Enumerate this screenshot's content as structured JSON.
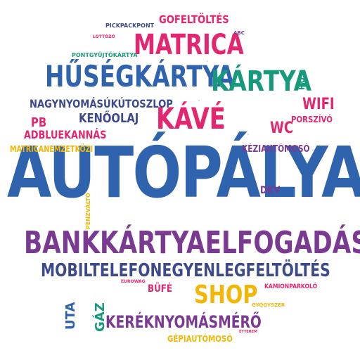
{
  "words": {
    "autopalya": "AUTÓPÁLYA",
    "bankkartya": "BANKKÁRTYAELFOGADÁS",
    "husegkartya": "HŰSÉGKÁRTYA",
    "matrica": "MATRICA",
    "kartya": "KÁRTYA",
    "kave": "KÁVÉ",
    "mobiltelefon": "MOBILTELEFONEGYENLEGFELTÖLTÉS",
    "shop": "SHOP",
    "kereknyomasmero": "KERÉKNYOMÁSMÉRŐ",
    "nagynyomasu": "NAGYNYOMÁSÚKÚTOSZLOP",
    "kenoolaj": "KENŐOLAJ",
    "gofeltoltes": "GOFELTÖLTÉS",
    "wifi": "WIFI",
    "wc": "WC",
    "porszivo": "PORSZÍVÓ",
    "pb": "PB",
    "adblue": "ADBLUEKANNÁS",
    "matricanemzetkozi": "MATRICANEMZETKÖZI",
    "kezimoso": "KÉZIAUTÓMOSÓ",
    "dkv": "DKV",
    "bufe": "BÜFÉ",
    "kamionparkolo": "KAMIONPARKOLÓ",
    "gepimoso": "GÉPIAUTÓMOSÓ",
    "pickpackpont": "PICKPACKPONT",
    "lottozo": "LOTTÓZÓ",
    "pontgyujto": "PONTGYŰJTŐKÁRTYA",
    "abc": "ABC",
    "eurowag": "EUROWAG",
    "gyogyszer": "GYÓGYSZER",
    "etterem": "ÉTTEREM",
    "hu": "HU",
    "uta": "UTA",
    "gaz": "GÁZ",
    "penzvalto": "PÉNZVÁLTÓ"
  },
  "colors": {
    "blue": "#2f63ad",
    "purple": "#7b3a91",
    "pink": "#e3266f",
    "green": "#169a7b",
    "yellow": "#f2b705",
    "dark_blue": "#3c4a8a"
  }
}
